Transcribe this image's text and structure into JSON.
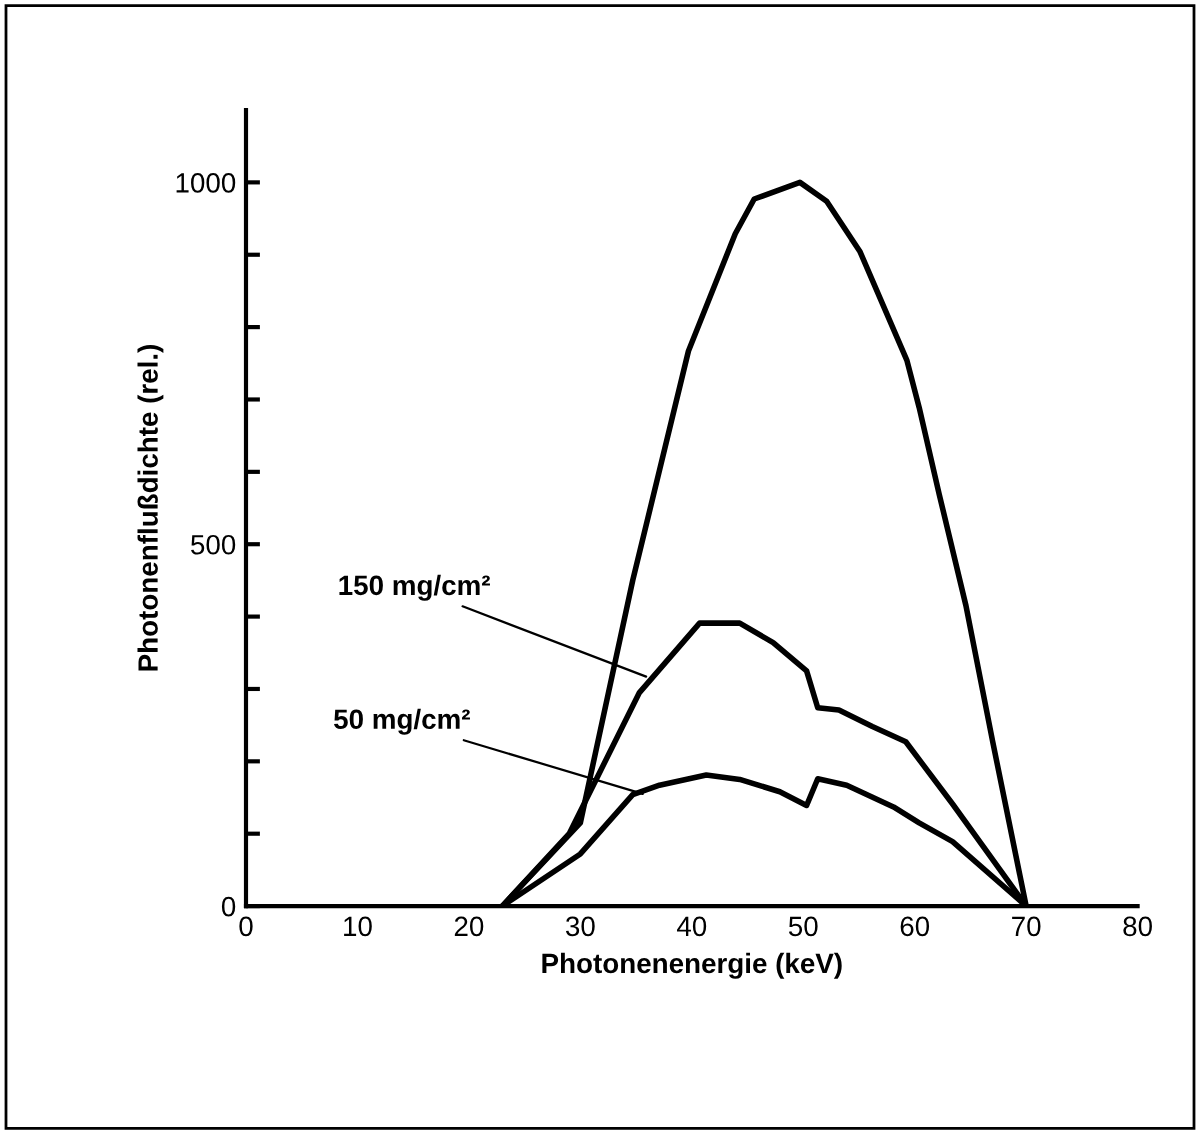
{
  "chart_data": {
    "type": "line",
    "xlabel": "Photonenenergie (keV)",
    "ylabel": "Photonenflußdichte (rel.)",
    "xlim": [
      0,
      80
    ],
    "ylim": [
      0,
      1100
    ],
    "xticks": [
      0,
      10,
      20,
      30,
      40,
      50,
      60,
      70,
      80
    ],
    "yticks": [
      0,
      {
        "value": 100,
        "label": null
      },
      {
        "value": 200,
        "label": null
      },
      {
        "value": 300,
        "label": null
      },
      {
        "value": 400,
        "label": null
      },
      500,
      {
        "value": 600,
        "label": null
      },
      {
        "value": 700,
        "label": null
      },
      {
        "value": 800,
        "label": null
      },
      {
        "value": 900,
        "label": null
      },
      1000
    ],
    "series": [
      {
        "color": "#000000",
        "x": [
          23,
          30.0,
          34.7,
          39.7,
          43.9,
          45.6,
          49.7,
          52.1,
          55.1,
          59.3,
          60.4,
          62.2,
          64.6,
          67.0,
          70
        ],
        "values": [
          0,
          115,
          450,
          767,
          929,
          977,
          1000,
          974,
          904,
          754,
          689,
          569,
          415,
          227,
          0
        ]
      },
      {
        "color": "#000000",
        "x": [
          23,
          29.0,
          35.3,
          40.7,
          44.3,
          47.3,
          50.3,
          51.3,
          53.2,
          56.2,
          59.2,
          63.4,
          70
        ],
        "values": [
          0,
          100,
          295,
          391,
          391,
          364,
          325,
          274,
          271,
          248,
          227,
          141,
          0
        ]
      },
      {
        "color": "#000000",
        "x": [
          23,
          30.0,
          34.7,
          37.1,
          41.3,
          44.3,
          47.9,
          50.3,
          51.3,
          53.9,
          58.1,
          60.4,
          63.4,
          70
        ],
        "values": [
          0,
          72,
          154,
          167,
          181,
          175,
          158,
          139,
          176,
          167,
          137,
          115,
          89,
          0
        ]
      }
    ],
    "annotations": [
      {
        "text": "150 mg/cm²",
        "x": 35.9,
        "y": 317
      },
      {
        "text": "50 mg/cm²",
        "x": 35.6,
        "y": 155
      }
    ]
  }
}
